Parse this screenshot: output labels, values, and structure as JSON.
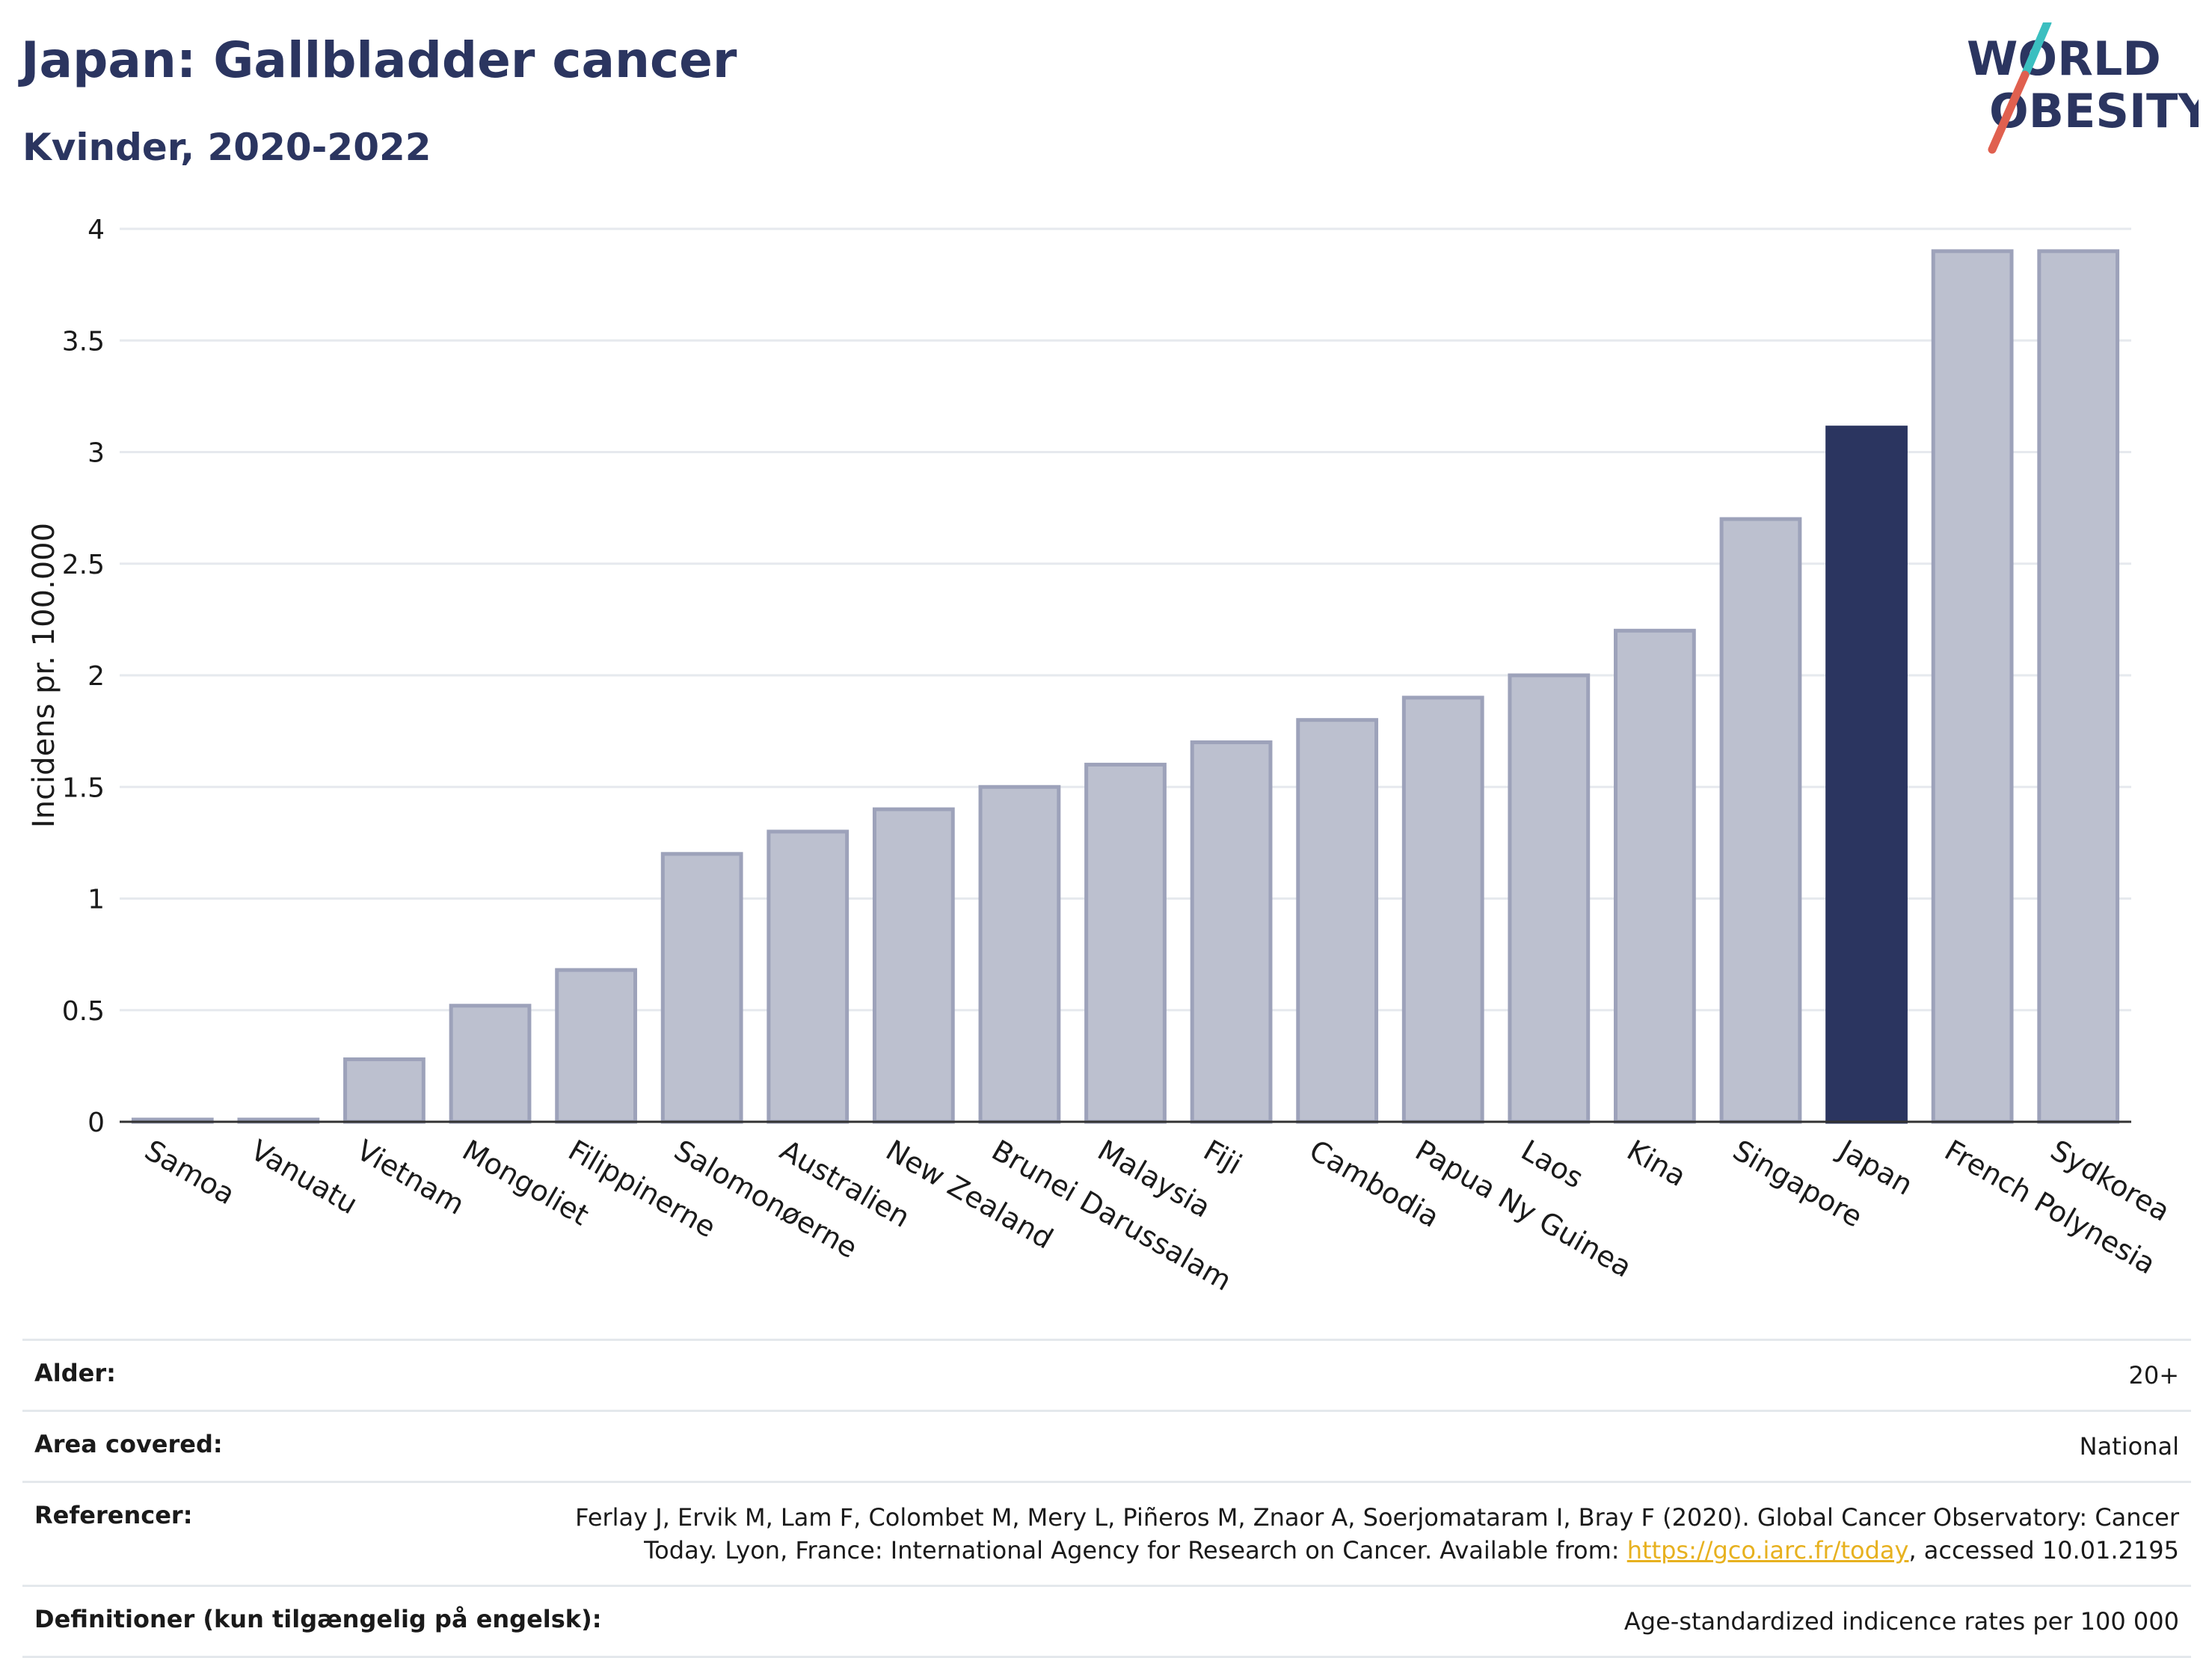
{
  "header": {
    "title": "Japan: Gallbladder cancer",
    "subtitle": "Kvinder, 2020-2022"
  },
  "logo": {
    "line1": "WORLD",
    "line2": "OBESITY"
  },
  "colors": {
    "highlight": "#2b3560",
    "bar": "#bcc0cf",
    "bar_edge": "#9da2ba",
    "link": "#e7b11f"
  },
  "chart_data": {
    "type": "bar",
    "title": "Japan: Gallbladder cancer",
    "subtitle": "Kvinder, 2020-2022",
    "xlabel": "",
    "ylabel": "Incidens pr. 100.000",
    "ylim": [
      0,
      4
    ],
    "yticks": [
      0,
      0.5,
      1,
      1.5,
      2,
      2.5,
      3,
      3.5,
      4
    ],
    "ytick_labels": [
      "0",
      "0.5",
      "1",
      "1.5",
      "2",
      "2.5",
      "3",
      "3.5",
      "4"
    ],
    "grid": true,
    "categories": [
      "Samoa",
      "Vanuatu",
      "Vietnam",
      "Mongoliet",
      "Filippinerne",
      "Salomonøerne",
      "Australien",
      "New Zealand",
      "Brunei Darussalam",
      "Malaysia",
      "Fiji",
      "Cambodia",
      "Papua Ny Guinea",
      "Laos",
      "Kina",
      "Singapore",
      "Japan",
      "French Polynesia",
      "Sydkorea"
    ],
    "values": [
      0.01,
      0.01,
      0.28,
      0.52,
      0.68,
      1.2,
      1.3,
      1.4,
      1.5,
      1.6,
      1.7,
      1.8,
      1.9,
      2.0,
      2.2,
      2.7,
      3.11,
      3.9,
      3.9
    ],
    "highlight": "Japan"
  },
  "meta": {
    "rows": [
      {
        "label": "Alder:",
        "value": "20+"
      },
      {
        "label": "Area covered:",
        "value": "National"
      },
      {
        "label": "Referencer:",
        "value_before": "Ferlay J, Ervik M, Lam F, Colombet M, Mery L, Piñeros M, Znaor A, Soerjomataram I, Bray F (2020). Global Cancer Observatory: Cancer Today. Lyon, France: International Agency for Research on Cancer. Available from: ",
        "link": "https://gco.iarc.fr/today",
        "value_after": ", accessed 10.01.2195"
      },
      {
        "label": "Definitioner (kun tilgængelig på engelsk):",
        "value": "Age-standardized indicence rates per 100 000"
      }
    ]
  }
}
